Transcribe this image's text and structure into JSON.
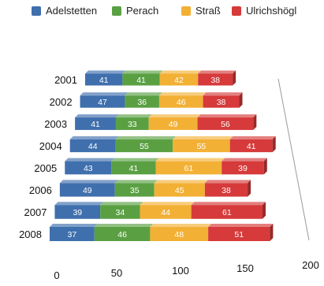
{
  "chart_data": {
    "type": "bar",
    "orientation": "horizontal",
    "stacked": true,
    "perspective_3d": true,
    "categories": [
      "2001",
      "2002",
      "2003",
      "2004",
      "2005",
      "2006",
      "2007",
      "2008"
    ],
    "series": [
      {
        "name": "Adelstetten",
        "color": "#3f6fad",
        "values": [
          41,
          47,
          41,
          44,
          43,
          49,
          39,
          37
        ]
      },
      {
        "name": "Perach",
        "color": "#5aa043",
        "values": [
          41,
          36,
          33,
          55,
          41,
          35,
          34,
          46
        ]
      },
      {
        "name": "Straß",
        "color": "#f2b035",
        "values": [
          42,
          46,
          49,
          55,
          61,
          45,
          44,
          48
        ]
      },
      {
        "name": "Ulrichshögl",
        "color": "#d63a3a",
        "values": [
          38,
          38,
          56,
          41,
          39,
          38,
          61,
          51
        ]
      }
    ],
    "x_ticks": [
      "0",
      "50",
      "100",
      "150",
      "200"
    ],
    "xlim": [
      0,
      200
    ],
    "legend_position": "top",
    "grid": false,
    "data_labels": true
  }
}
